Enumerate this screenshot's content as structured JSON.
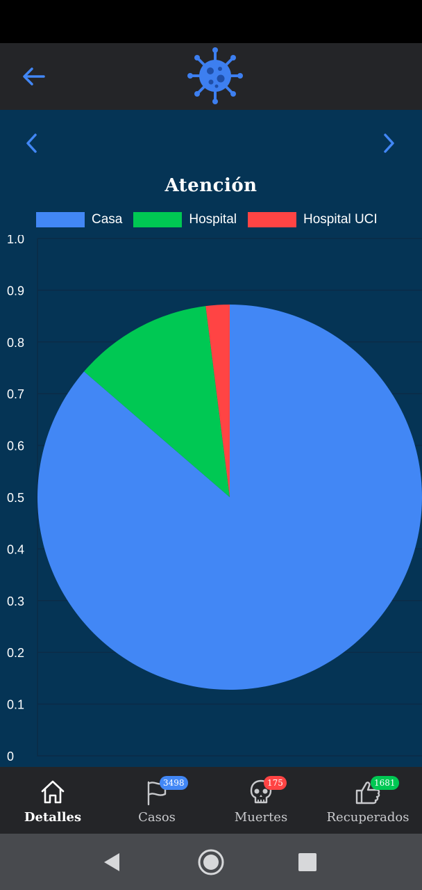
{
  "app_bar": {
    "back_icon": "arrow-left-icon",
    "logo": "virus-logo"
  },
  "chart_nav": {
    "prev_icon": "chevron-left-icon",
    "next_icon": "chevron-right-icon"
  },
  "colors": {
    "casa": "#4287f5",
    "hospital": "#00c853",
    "hospital_uci": "#ff4444",
    "background": "#053455",
    "bar": "#242528",
    "badge_casos": "#4287f5",
    "badge_muertes": "#ff4444",
    "badge_recuperados": "#00c853"
  },
  "chart_data": {
    "type": "pie",
    "title": "Atención",
    "categories": [
      "Casa",
      "Hospital",
      "Hospital UCI"
    ],
    "values": [
      0.8631,
      0.1169,
      0.02
    ],
    "colors": [
      "#4287f5",
      "#00c853",
      "#ff4444"
    ],
    "ytick_labels": [
      "1.0",
      "0.9",
      "0.8",
      "0.7",
      "0.6",
      "0.5",
      "0.4",
      "0.3",
      "0.2",
      "0.1",
      "0"
    ],
    "ylim": [
      0,
      1
    ],
    "grid": true,
    "legend_placement": "top"
  },
  "bottom_nav": {
    "tabs": [
      {
        "label": "Detalles",
        "icon": "home-icon",
        "badge": "",
        "active": true
      },
      {
        "label": "Casos",
        "icon": "flag-icon",
        "badge": "3498",
        "active": false
      },
      {
        "label": "Muertes",
        "icon": "skull-icon",
        "badge": "175",
        "active": false
      },
      {
        "label": "Recuperados",
        "icon": "thumbs-up-icon",
        "badge": "1681",
        "active": false
      }
    ]
  },
  "system_nav": {
    "back": "triangle-back-icon",
    "home": "circle-home-icon",
    "recents": "square-recents-icon"
  }
}
